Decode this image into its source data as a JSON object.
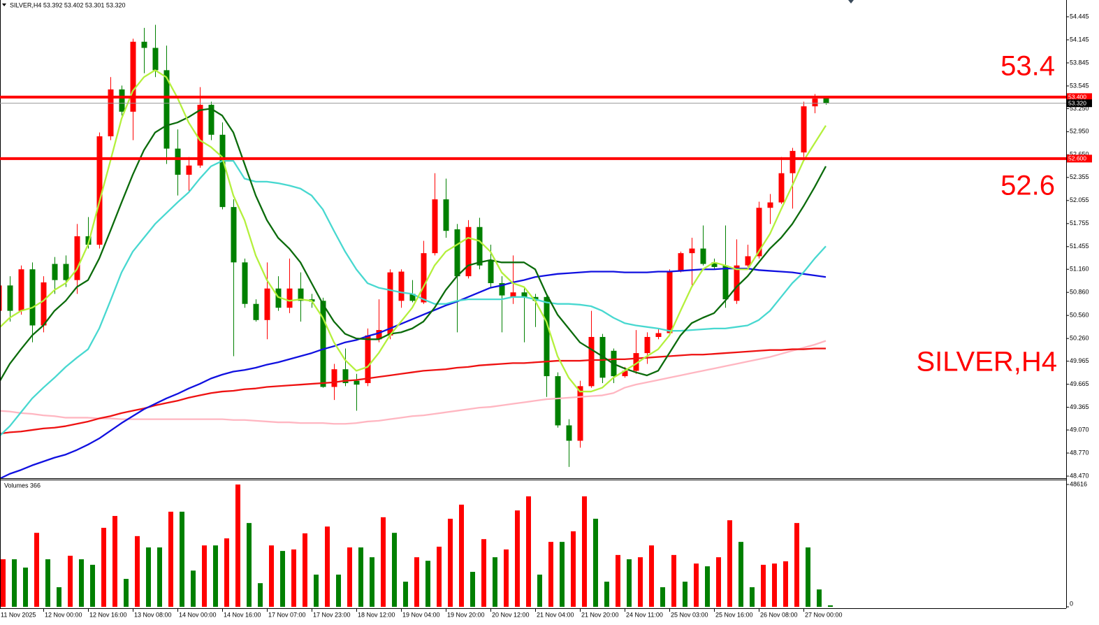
{
  "chart_data": [
    {
      "type": "candlestick",
      "header": "SILVER,H4 53.392 53.402 53.301 53.320",
      "annotations": [
        "53.4",
        "52.6",
        "SILVER,H4"
      ],
      "up_color": "#ff0000",
      "down_color": "#008000",
      "categories": [
        "11 Nov 2025",
        null,
        null,
        null,
        "12 Nov 00:00",
        null,
        null,
        null,
        "12 Nov 16:00",
        null,
        null,
        null,
        "13 Nov 08:00",
        null,
        null,
        null,
        "14 Nov 00:00",
        null,
        null,
        null,
        "14 Nov 16:00",
        null,
        null,
        null,
        "17 Nov 07:00",
        null,
        null,
        null,
        "17 Nov 23:00",
        null,
        null,
        null,
        "18 Nov 12:00",
        null,
        null,
        null,
        "19 Nov 04:00",
        null,
        null,
        null,
        "19 Nov 20:00",
        null,
        null,
        null,
        "20 Nov 12:00",
        null,
        null,
        null,
        "21 Nov 04:00",
        null,
        null,
        null,
        "21 Nov 20:00",
        null,
        null,
        null,
        "24 Nov 11:00",
        null,
        null,
        null,
        "25 Nov 03:00",
        null,
        null,
        null,
        "25 Nov 16:00",
        null,
        null,
        null,
        "26 Nov 08:00",
        null,
        null,
        null,
        "27 Nov 00:00",
        null,
        null
      ],
      "open": [
        50.62,
        50.95,
        50.62,
        51.16,
        50.43,
        51.23,
        51.23,
        51.02,
        51.59,
        51.48,
        52.89,
        53.5,
        53.21,
        54.12,
        54.04,
        53.75,
        52.73,
        52.39,
        52.51,
        53.3,
        52.91,
        51.97,
        51.25,
        50.71,
        50.5,
        50.91,
        50.66,
        50.91,
        50.77,
        50.75,
        49.63,
        49.86,
        49.71,
        49.68,
        50.25,
        50.3,
        50.75,
        50.84,
        50.73,
        51.37,
        52.07,
        51.68,
        51.07,
        51.71,
        51.28,
        50.98,
        50.8,
        50.86,
        50.8,
        50.8,
        49.77,
        49.13,
        48.93,
        49.64,
        50.28,
        50.1,
        49.77,
        49.84,
        50.07,
        50.28,
        50.33,
        51.13,
        51.37,
        51.43,
        51.25,
        51.21,
        50.75,
        51.21,
        51.33,
        51.96,
        52.03,
        52.41,
        52.68,
        53.28,
        53.392
      ],
      "high": [
        51.02,
        51.07,
        51.21,
        51.25,
        51.07,
        51.32,
        51.34,
        51.75,
        51.84,
        52.94,
        53.66,
        53.55,
        54.16,
        54.3,
        54.34,
        54.07,
        52.98,
        52.62,
        53.53,
        53.34,
        53.07,
        52.07,
        51.3,
        50.77,
        51.25,
        51.07,
        51.3,
        51.12,
        50.84,
        50.79,
        49.93,
        50.13,
        49.8,
        50.39,
        50.77,
        51.16,
        51.16,
        51.02,
        51.53,
        52.41,
        52.34,
        51.75,
        51.8,
        51.83,
        51.48,
        51.07,
        51.34,
        50.93,
        50.84,
        50.84,
        49.82,
        49.21,
        49.71,
        50.62,
        50.32,
        50.13,
        49.89,
        50.37,
        50.34,
        50.39,
        51.16,
        51.39,
        51.57,
        51.73,
        51.3,
        51.73,
        51.55,
        51.48,
        52.04,
        52.14,
        52.62,
        52.74,
        53.34,
        53.44,
        53.402
      ],
      "low": [
        50.57,
        50.48,
        50.57,
        50.21,
        50.34,
        50.84,
        50.93,
        50.84,
        51.43,
        51.43,
        52.84,
        53.16,
        52.84,
        53.71,
        53.66,
        52.53,
        52.12,
        52.16,
        52.48,
        52.84,
        51.94,
        50.03,
        50.66,
        50.48,
        50.25,
        50.62,
        50.59,
        50.48,
        50.66,
        49.62,
        49.46,
        49.64,
        49.32,
        49.64,
        50.21,
        50.25,
        50.66,
        50.73,
        50.71,
        51.34,
        51.57,
        50.34,
        51.04,
        51.16,
        50.93,
        50.34,
        50.71,
        50.21,
        50.41,
        49.5,
        49.1,
        48.59,
        48.84,
        49.62,
        49.68,
        49.68,
        49.75,
        49.8,
        49.93,
        50.25,
        50.3,
        51.12,
        50.95,
        51.21,
        51.16,
        50.66,
        50.71,
        51.19,
        51.3,
        51.75,
        52.01,
        51.95,
        52.62,
        53.19,
        53.301
      ],
      "close": [
        50.95,
        50.62,
        51.16,
        50.43,
        50.99,
        51.02,
        51.02,
        51.59,
        51.48,
        52.89,
        53.5,
        53.21,
        54.12,
        54.04,
        53.75,
        52.73,
        52.39,
        52.51,
        53.3,
        52.91,
        51.97,
        51.25,
        50.71,
        50.5,
        50.91,
        50.66,
        50.91,
        50.75,
        50.74,
        49.63,
        49.86,
        49.68,
        49.66,
        50.3,
        50.37,
        51.12,
        51.13,
        50.75,
        51.37,
        52.07,
        51.66,
        51.07,
        51.71,
        51.21,
        50.98,
        50.82,
        50.86,
        50.8,
        50.75,
        49.77,
        49.13,
        48.93,
        49.64,
        50.28,
        49.75,
        49.77,
        49.84,
        50.07,
        50.28,
        50.33,
        51.13,
        51.37,
        51.43,
        51.23,
        51.19,
        50.77,
        51.21,
        51.33,
        51.96,
        52.03,
        52.41,
        52.7,
        53.28,
        53.38,
        53.32
      ],
      "series": [
        {
          "color": "#ffb6c1",
          "values": [
            49.32,
            49.31,
            49.29,
            49.28,
            49.26,
            49.25,
            49.23,
            49.23,
            49.23,
            49.22,
            49.22,
            49.21,
            49.21,
            49.21,
            49.21,
            49.21,
            49.21,
            49.21,
            49.21,
            49.21,
            49.21,
            49.2,
            49.2,
            49.19,
            49.18,
            49.17,
            49.17,
            49.16,
            49.16,
            49.16,
            49.15,
            49.15,
            49.16,
            49.18,
            49.19,
            49.21,
            49.23,
            49.25,
            49.26,
            49.28,
            49.3,
            49.32,
            49.34,
            49.36,
            49.37,
            49.39,
            49.41,
            49.43,
            49.45,
            49.47,
            49.48,
            49.49,
            49.5,
            49.51,
            49.52,
            49.55,
            49.62,
            49.66,
            49.69,
            49.72,
            49.75,
            49.78,
            49.81,
            49.84,
            49.87,
            49.9,
            49.93,
            49.96,
            49.99,
            50.02,
            50.06,
            50.1,
            50.14,
            50.18,
            50.23
          ]
        },
        {
          "color": "#ee1111",
          "values": [
            49.02,
            49.04,
            49.05,
            49.07,
            49.09,
            49.1,
            49.12,
            49.15,
            49.18,
            49.22,
            49.25,
            49.29,
            49.32,
            49.35,
            49.39,
            49.42,
            49.45,
            49.49,
            49.52,
            49.55,
            49.57,
            49.58,
            49.6,
            49.61,
            49.63,
            49.64,
            49.65,
            49.66,
            49.67,
            49.68,
            49.69,
            49.71,
            49.72,
            49.74,
            49.76,
            49.78,
            49.8,
            49.82,
            49.84,
            49.85,
            49.86,
            49.88,
            49.89,
            49.91,
            49.92,
            49.93,
            49.94,
            49.94,
            49.95,
            49.96,
            49.97,
            49.97,
            49.97,
            49.98,
            49.98,
            49.99,
            49.99,
            50.0,
            50.01,
            50.02,
            50.03,
            50.04,
            50.05,
            50.05,
            50.06,
            50.07,
            50.08,
            50.09,
            50.1,
            50.11,
            50.11,
            50.12,
            50.12,
            50.13,
            50.13
          ]
        },
        {
          "color": "#1010e0",
          "values": [
            48.43,
            48.5,
            48.55,
            48.61,
            48.66,
            48.71,
            48.75,
            48.81,
            48.88,
            48.96,
            49.06,
            49.16,
            49.25,
            49.34,
            49.41,
            49.48,
            49.54,
            49.61,
            49.67,
            49.74,
            49.79,
            49.83,
            49.85,
            49.88,
            49.92,
            49.95,
            49.99,
            50.03,
            50.07,
            50.12,
            50.16,
            50.21,
            50.24,
            50.29,
            50.33,
            50.39,
            50.45,
            50.51,
            50.57,
            50.63,
            50.69,
            50.74,
            50.8,
            50.86,
            50.92,
            50.95,
            50.99,
            51.02,
            51.06,
            51.08,
            51.1,
            51.11,
            51.12,
            51.13,
            51.13,
            51.13,
            51.12,
            51.12,
            51.12,
            51.13,
            51.13,
            51.14,
            51.15,
            51.16,
            51.16,
            51.17,
            51.17,
            51.17,
            51.15,
            51.14,
            51.13,
            51.12,
            51.1,
            51.08,
            51.06
          ]
        },
        {
          "color": "#48d8d0",
          "values": [
            48.98,
            49.12,
            49.3,
            49.48,
            49.62,
            49.75,
            49.89,
            50.01,
            50.12,
            50.39,
            50.75,
            51.12,
            51.39,
            51.57,
            51.75,
            51.89,
            52.03,
            52.16,
            52.34,
            52.5,
            52.57,
            52.57,
            52.34,
            52.3,
            52.3,
            52.28,
            52.25,
            52.21,
            52.12,
            51.94,
            51.66,
            51.39,
            51.16,
            50.98,
            50.92,
            50.89,
            50.86,
            50.84,
            50.77,
            50.71,
            50.71,
            50.75,
            50.77,
            50.77,
            50.77,
            50.77,
            50.8,
            50.8,
            50.77,
            50.73,
            50.71,
            50.71,
            50.7,
            50.68,
            50.62,
            50.53,
            50.46,
            50.43,
            50.41,
            50.39,
            50.36,
            50.36,
            50.37,
            50.38,
            50.39,
            50.39,
            50.41,
            50.43,
            50.5,
            50.62,
            50.8,
            50.98,
            51.12,
            51.3,
            51.46
          ]
        },
        {
          "color": "#0b6b0b",
          "values": [
            49.68,
            49.93,
            50.12,
            50.3,
            50.43,
            50.62,
            50.75,
            50.93,
            51.02,
            51.3,
            51.66,
            52.03,
            52.39,
            52.71,
            52.94,
            53.03,
            53.07,
            53.14,
            53.23,
            53.25,
            53.16,
            52.94,
            52.53,
            52.12,
            51.8,
            51.57,
            51.43,
            51.25,
            50.98,
            50.71,
            50.48,
            50.32,
            50.26,
            50.25,
            50.25,
            50.32,
            50.34,
            50.39,
            50.48,
            50.66,
            50.89,
            51.07,
            51.21,
            51.25,
            51.28,
            51.25,
            51.25,
            51.25,
            51.16,
            50.84,
            50.57,
            50.39,
            50.21,
            50.12,
            50.03,
            49.93,
            49.87,
            49.82,
            49.78,
            49.84,
            50.07,
            50.3,
            50.46,
            50.53,
            50.59,
            50.75,
            50.93,
            51.07,
            51.25,
            51.43,
            51.57,
            51.75,
            51.98,
            52.23,
            52.5
          ]
        },
        {
          "color": "#b4f03c",
          "values": [
            50.39,
            50.53,
            50.62,
            50.66,
            50.75,
            50.89,
            50.98,
            51.16,
            51.48,
            52.03,
            52.57,
            53.12,
            53.48,
            53.66,
            53.75,
            53.66,
            53.39,
            53.07,
            52.84,
            52.75,
            52.62,
            52.12,
            51.8,
            51.34,
            51.02,
            50.8,
            50.75,
            50.77,
            50.75,
            50.53,
            50.21,
            49.98,
            49.84,
            49.89,
            50.07,
            50.3,
            50.48,
            50.66,
            50.93,
            51.21,
            51.39,
            51.48,
            51.57,
            51.53,
            51.39,
            51.12,
            50.98,
            50.93,
            50.75,
            50.48,
            50.03,
            49.75,
            49.57,
            49.57,
            49.62,
            49.75,
            49.84,
            49.93,
            50.03,
            50.12,
            50.3,
            50.62,
            50.93,
            51.16,
            51.25,
            51.21,
            51.16,
            51.16,
            51.39,
            51.62,
            51.94,
            52.25,
            52.57,
            52.8,
            53.03
          ]
        }
      ],
      "levels": [
        {
          "value": 53.4,
          "label": "53.400"
        },
        {
          "value": 52.6,
          "label": "52.600"
        }
      ],
      "level_color": "#ff0000",
      "price_line": {
        "value": 53.32,
        "label": "53.320"
      },
      "ylim": [
        48.443,
        54.663
      ],
      "yticks": [
        54.445,
        54.145,
        53.845,
        53.545,
        {
          "value": 53.25,
          "label": "53.250"
        },
        {
          "value": 52.95,
          "label": "52.950"
        },
        {
          "value": 52.65,
          "label": "52.650"
        },
        52.355,
        52.055,
        51.755,
        51.455,
        {
          "value": 51.16,
          "label": "51.160"
        },
        {
          "value": 50.86,
          "label": "50.860"
        },
        {
          "value": 50.56,
          "label": "50.560"
        },
        {
          "value": 50.26,
          "label": "50.260"
        },
        49.965,
        49.665,
        49.365,
        {
          "value": 49.07,
          "label": "49.070"
        },
        {
          "value": 48.77,
          "label": "48.770"
        },
        {
          "value": 48.47,
          "label": "48.470"
        }
      ]
    },
    {
      "type": "bar",
      "title": "Volumes 366",
      "up_color": "#ff0000",
      "down_color": "#008000",
      "values": [
        18900,
        18900,
        15600,
        29400,
        18900,
        7800,
        20300,
        18900,
        16700,
        31400,
        36100,
        11100,
        28100,
        23600,
        23600,
        37800,
        37800,
        14400,
        24400,
        24400,
        27200,
        48600,
        33300,
        9400,
        24400,
        22200,
        22800,
        29200,
        12800,
        31900,
        12800,
        23600,
        23600,
        19700,
        35600,
        29400,
        10000,
        19700,
        18300,
        23900,
        35000,
        40600,
        13900,
        26900,
        19700,
        22800,
        38300,
        43900,
        12800,
        25800,
        25800,
        30000,
        43900,
        35000,
        10000,
        20600,
        18900,
        19700,
        24400,
        7800,
        20600,
        10000,
        17200,
        16100,
        19700,
        34400,
        25800,
        7800,
        16700,
        17200,
        18100,
        33300,
        23600,
        6900,
        600
      ],
      "ylim": [
        0,
        48616
      ],
      "yticks": [
        0,
        48616
      ]
    }
  ]
}
